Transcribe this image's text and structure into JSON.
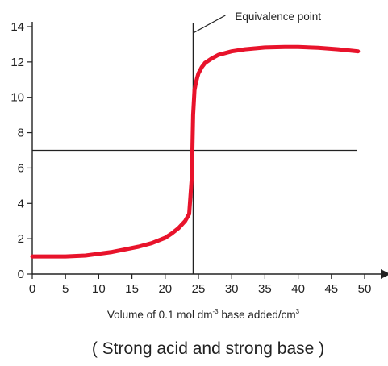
{
  "chart_data": {
    "type": "line",
    "xlabel": "Volume of 0.1 mol dm",
    "xlabel_superscript": "-3",
    "xlabel_suffix": " base added/cm",
    "xlabel_unit_superscript": "3",
    "caption": "( Strong acid and strong base )",
    "xlim": [
      0,
      50
    ],
    "ylim": [
      0,
      14
    ],
    "x_ticks": [
      0,
      5,
      10,
      15,
      20,
      25,
      30,
      35,
      40,
      45,
      50
    ],
    "y_ticks": [
      0,
      2,
      4,
      6,
      8,
      10,
      12,
      14
    ],
    "grid": false,
    "series": [
      {
        "color": "#e8132b",
        "x": [
          0,
          2,
          5,
          8,
          10,
          12,
          14,
          16,
          18,
          20,
          21,
          22,
          23,
          23.6,
          24,
          24.2,
          24.4,
          24.6,
          24.8,
          25,
          25.5,
          26,
          27,
          28,
          30,
          32,
          35,
          38,
          40,
          43,
          46,
          49
        ],
        "y": [
          1.0,
          1.0,
          1.0,
          1.05,
          1.15,
          1.25,
          1.4,
          1.55,
          1.75,
          2.05,
          2.3,
          2.6,
          3.0,
          3.4,
          5.5,
          9.0,
          10.4,
          10.8,
          11.1,
          11.35,
          11.7,
          11.95,
          12.2,
          12.4,
          12.6,
          12.72,
          12.82,
          12.85,
          12.85,
          12.8,
          12.72,
          12.6
        ]
      }
    ],
    "reference_lines": [
      {
        "orientation": "horizontal",
        "value": 7,
        "color": "#222222"
      },
      {
        "orientation": "vertical",
        "value": 24.2,
        "color": "#222222"
      }
    ],
    "annotations": [
      {
        "text": "Equivalence point",
        "x": 24.2,
        "y": 14
      }
    ]
  }
}
